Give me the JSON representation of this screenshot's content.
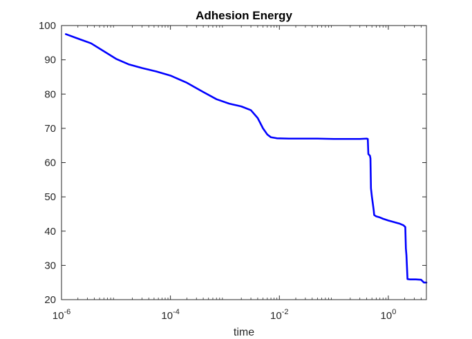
{
  "chart_data": {
    "type": "line",
    "title": "Adhesion Energy",
    "xlabel": "time",
    "ylabel": "",
    "x_scale": "log",
    "xlim": [
      1e-06,
      5
    ],
    "ylim": [
      20,
      100
    ],
    "x_ticks": [
      {
        "value": 1e-06,
        "base": "10",
        "exp": "-6"
      },
      {
        "value": 0.0001,
        "base": "10",
        "exp": "-4"
      },
      {
        "value": 0.01,
        "base": "10",
        "exp": "-2"
      },
      {
        "value": 1,
        "base": "10",
        "exp": "0"
      }
    ],
    "y_ticks": [
      20,
      30,
      40,
      50,
      60,
      70,
      80,
      90,
      100
    ],
    "grid": false,
    "series": [
      {
        "color": "#0000ff",
        "points": [
          [
            1.2e-06,
            97.5
          ],
          [
            2e-06,
            96.2
          ],
          [
            3.5e-06,
            94.8
          ],
          [
            6e-06,
            92.5
          ],
          [
            1e-05,
            90.3
          ],
          [
            1.7e-05,
            88.7
          ],
          [
            3e-05,
            87.6
          ],
          [
            5.5e-05,
            86.6
          ],
          [
            0.0001,
            85.4
          ],
          [
            0.0002,
            83.3
          ],
          [
            0.0004,
            80.6
          ],
          [
            0.0007,
            78.5
          ],
          [
            0.0012,
            77.2
          ],
          [
            0.002,
            76.4
          ],
          [
            0.003,
            75.3
          ],
          [
            0.004,
            73.0
          ],
          [
            0.005,
            70.0
          ],
          [
            0.006,
            68.2
          ],
          [
            0.007,
            67.4
          ],
          [
            0.009,
            67.1
          ],
          [
            0.015,
            67.0
          ],
          [
            0.05,
            67.0
          ],
          [
            0.1,
            66.9
          ],
          [
            0.3,
            66.9
          ],
          [
            0.4,
            67.0
          ],
          [
            0.42,
            66.9
          ],
          [
            0.43,
            62.5
          ],
          [
            0.46,
            62.0
          ],
          [
            0.47,
            61.2
          ],
          [
            0.48,
            52.5
          ],
          [
            0.5,
            50.0
          ],
          [
            0.52,
            48.0
          ],
          [
            0.54,
            46.0
          ],
          [
            0.55,
            44.7
          ],
          [
            0.6,
            44.3
          ],
          [
            0.7,
            44.0
          ],
          [
            0.8,
            43.6
          ],
          [
            1.0,
            43.1
          ],
          [
            1.3,
            42.6
          ],
          [
            1.6,
            42.2
          ],
          [
            1.9,
            41.7
          ],
          [
            2.05,
            41.2
          ],
          [
            2.1,
            35.0
          ],
          [
            2.15,
            33.0
          ],
          [
            2.2,
            29.5
          ],
          [
            2.25,
            26.0
          ],
          [
            2.5,
            25.9
          ],
          [
            3.2,
            25.9
          ],
          [
            4.0,
            25.8
          ],
          [
            4.3,
            25.3
          ],
          [
            4.5,
            25.0
          ],
          [
            5.0,
            25.0
          ]
        ]
      }
    ]
  }
}
